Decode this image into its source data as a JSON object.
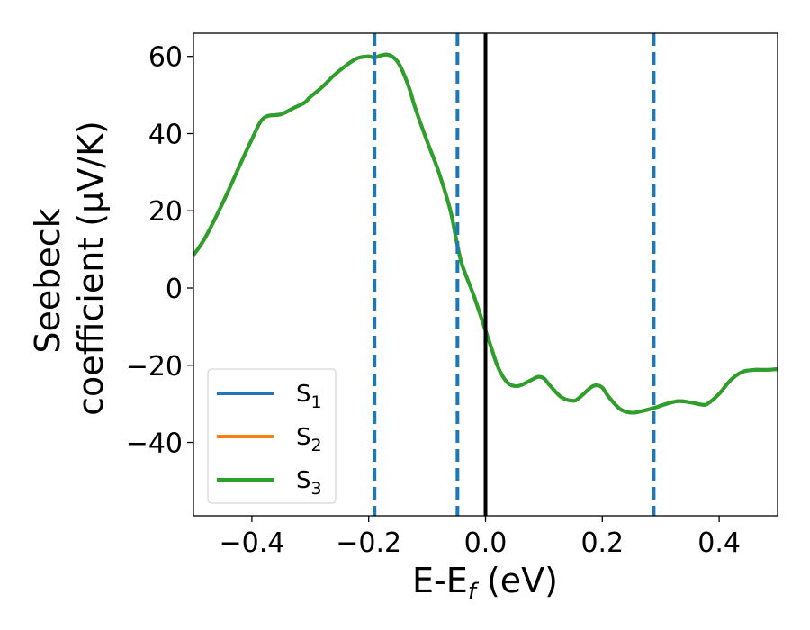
{
  "chart_data": {
    "type": "line",
    "xlabel": "E-E",
    "xlabel_sub": "f",
    "xlabel_unit": " (eV)",
    "ylabel_line1": "Seebeck",
    "ylabel_line2": "coefficient  (μV/K)",
    "xlim": [
      -0.5,
      0.5
    ],
    "ylim": [
      -59,
      66
    ],
    "xticks": [
      -0.4,
      -0.2,
      0.0,
      0.2,
      0.4
    ],
    "xtick_labels": [
      "−0.4",
      "−0.2",
      "0.0",
      "0.2",
      "0.4"
    ],
    "yticks": [
      -40,
      -20,
      0,
      20,
      40,
      60
    ],
    "ytick_labels": [
      "−40",
      "−20",
      "0",
      "20",
      "40",
      "60"
    ],
    "grid": false,
    "legend_position": "lower-left",
    "x": [
      -0.5,
      -0.48,
      -0.45,
      -0.42,
      -0.4,
      -0.38,
      -0.35,
      -0.33,
      -0.31,
      -0.3,
      -0.28,
      -0.26,
      -0.24,
      -0.22,
      -0.2,
      -0.19,
      -0.18,
      -0.17,
      -0.16,
      -0.15,
      -0.14,
      -0.13,
      -0.12,
      -0.1,
      -0.08,
      -0.06,
      -0.05,
      -0.04,
      -0.02,
      0.0,
      0.01,
      0.02,
      0.03,
      0.04,
      0.05,
      0.06,
      0.08,
      0.09,
      0.1,
      0.11,
      0.13,
      0.15,
      0.16,
      0.18,
      0.19,
      0.2,
      0.21,
      0.23,
      0.25,
      0.27,
      0.29,
      0.31,
      0.33,
      0.35,
      0.37,
      0.38,
      0.4,
      0.42,
      0.44,
      0.46,
      0.48,
      0.5
    ],
    "series": [
      {
        "name": "S1",
        "label_main": "S",
        "label_sub": "1",
        "color": "#1f77b4",
        "y": [
          8.5,
          13,
          22,
          32,
          38.5,
          44,
          45,
          46.5,
          48,
          49.5,
          52,
          55,
          57.5,
          59.5,
          60,
          59.7,
          60.2,
          60.5,
          60,
          58.5,
          55.5,
          51.5,
          46.5,
          38,
          30,
          20,
          12.5,
          6,
          -2,
          -11,
          -15.5,
          -20,
          -23,
          -24.8,
          -25.4,
          -25.2,
          -23.7,
          -23,
          -23.4,
          -25.2,
          -28.3,
          -29.2,
          -28.5,
          -25.8,
          -25.2,
          -25.8,
          -28,
          -31.3,
          -32.3,
          -31.8,
          -31,
          -30,
          -29.3,
          -29.6,
          -30.2,
          -30,
          -27.4,
          -23.8,
          -21.7,
          -21.2,
          -21.2,
          -21
        ]
      },
      {
        "name": "S2",
        "label_main": "S",
        "label_sub": "2",
        "color": "#ff7f0e",
        "y": [
          8.5,
          13,
          22,
          32,
          38.5,
          44,
          45,
          46.5,
          48,
          49.5,
          52,
          55,
          57.5,
          59.5,
          60,
          59.7,
          60.2,
          60.5,
          60,
          58.5,
          55.5,
          51.5,
          46.5,
          38,
          30,
          20,
          12.5,
          6,
          -2,
          -11,
          -15.5,
          -20,
          -23,
          -24.8,
          -25.4,
          -25.2,
          -23.7,
          -23,
          -23.4,
          -25.2,
          -28.3,
          -29.2,
          -28.5,
          -25.8,
          -25.2,
          -25.8,
          -28,
          -31.3,
          -32.3,
          -31.8,
          -31,
          -30,
          -29.3,
          -29.6,
          -30.2,
          -30,
          -27.4,
          -23.8,
          -21.7,
          -21.2,
          -21.2,
          -21
        ]
      },
      {
        "name": "S3",
        "label_main": "S",
        "label_sub": "3",
        "color": "#2ca02c",
        "y": [
          8.5,
          13,
          22,
          32,
          38.5,
          44,
          45,
          46.5,
          48,
          49.5,
          52,
          55,
          57.5,
          59.5,
          60,
          59.7,
          60.2,
          60.5,
          60,
          58.5,
          55.5,
          51.5,
          46.5,
          38,
          30,
          20,
          12.5,
          6,
          -2,
          -11,
          -15.5,
          -20,
          -23,
          -24.8,
          -25.4,
          -25.2,
          -23.7,
          -23,
          -23.4,
          -25.2,
          -28.3,
          -29.2,
          -28.5,
          -25.8,
          -25.2,
          -25.8,
          -28,
          -31.3,
          -32.3,
          -31.8,
          -31,
          -30,
          -29.3,
          -29.6,
          -30.2,
          -30,
          -27.4,
          -23.8,
          -21.7,
          -21.2,
          -21.2,
          -21
        ]
      }
    ],
    "vlines_dashed": {
      "x": [
        -0.19,
        -0.048,
        0.288
      ],
      "color": "#1f77b4"
    },
    "vline_solid": {
      "x": 0.0,
      "color": "#000000"
    }
  }
}
